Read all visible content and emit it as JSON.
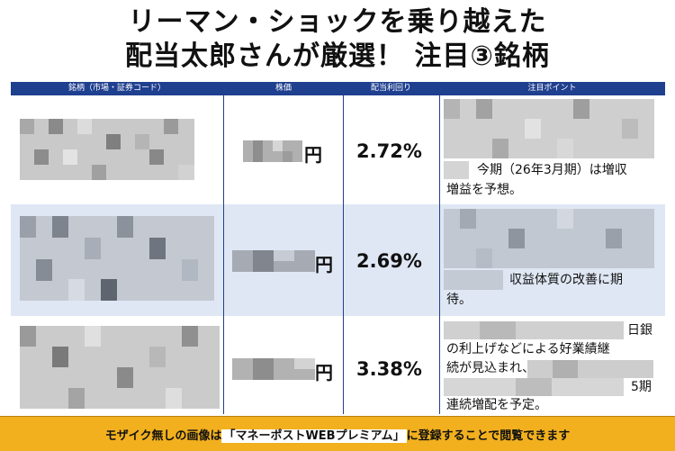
{
  "title": {
    "line1": "リーマン・ショックを乗り越えた",
    "line2": "配当太郎さんが厳選！ 注目③銘柄"
  },
  "table": {
    "headers": [
      "銘柄（市場・証券コード）",
      "株価",
      "配当利回り",
      "注目ポイント"
    ],
    "rows": [
      {
        "yen": "円",
        "yield": "2.72%",
        "point_lines": [
          "今期（26年3月期）は増収",
          "増益を予想。"
        ]
      },
      {
        "yen": "円",
        "yield": "2.69%",
        "point_lines": [
          "収益体質の改善に期",
          "待。"
        ]
      },
      {
        "yen": "円",
        "yield": "3.38%",
        "point_lines": [
          "日銀",
          "の利上げなどによる好業績継",
          "続が見込まれ、",
          "5期",
          "連続増配を予定。"
        ]
      }
    ]
  },
  "footer": {
    "before": "モザイク無しの画像は",
    "highlight": "「マネーポストWEBプレミアム」",
    "after": "に登録することで閲覧できます"
  },
  "colors": {
    "header_bg": "#1f3f8f",
    "row_highlight": "#dfe7f4",
    "footer_bg": "#f2b01e"
  }
}
